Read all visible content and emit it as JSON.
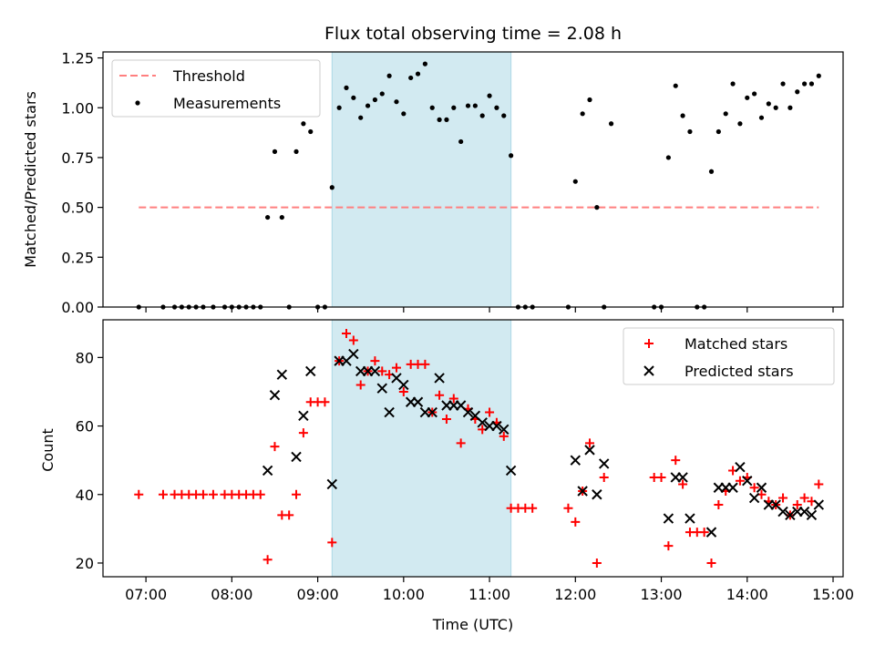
{
  "chart_data": [
    {
      "type": "scatter",
      "title": "Flux total observing time = 2.08 h",
      "xlabel": "",
      "ylabel": "Matched/Predicted stars",
      "xlim": [
        "06:30",
        "15:07"
      ],
      "ylim": [
        0,
        1.28
      ],
      "y_ticks": [
        "0.00",
        "0.25",
        "0.50",
        "0.75",
        "1.00",
        "1.25"
      ],
      "highlight_span": {
        "start": "09:10",
        "end": "11:15",
        "color": "#add8e6"
      },
      "legend_position": "upper-left",
      "series": [
        {
          "name": "Threshold",
          "kind": "dashed-line",
          "color": "#ff7f7f",
          "points": [
            [
              "06:55",
              0.5
            ],
            [
              "14:50",
              0.5
            ]
          ]
        },
        {
          "name": "Measurements",
          "kind": "dots",
          "color": "#000000",
          "points": [
            [
              "06:55",
              0
            ],
            [
              "07:12",
              0
            ],
            [
              "07:20",
              0
            ],
            [
              "07:25",
              0
            ],
            [
              "07:30",
              0
            ],
            [
              "07:35",
              0
            ],
            [
              "07:40",
              0
            ],
            [
              "07:47",
              0
            ],
            [
              "07:55",
              0
            ],
            [
              "08:00",
              0
            ],
            [
              "08:05",
              0
            ],
            [
              "08:10",
              0
            ],
            [
              "08:15",
              0
            ],
            [
              "08:20",
              0
            ],
            [
              "08:25",
              0.45
            ],
            [
              "08:30",
              0.78
            ],
            [
              "08:35",
              0.45
            ],
            [
              "08:40",
              0
            ],
            [
              "08:45",
              0.78
            ],
            [
              "08:50",
              0.92
            ],
            [
              "08:55",
              0.88
            ],
            [
              "09:00",
              0
            ],
            [
              "09:05",
              0
            ],
            [
              "09:10",
              0.6
            ],
            [
              "09:15",
              1.0
            ],
            [
              "09:20",
              1.1
            ],
            [
              "09:25",
              1.05
            ],
            [
              "09:30",
              0.95
            ],
            [
              "09:35",
              1.01
            ],
            [
              "09:40",
              1.04
            ],
            [
              "09:45",
              1.07
            ],
            [
              "09:50",
              1.16
            ],
            [
              "09:55",
              1.03
            ],
            [
              "10:00",
              0.97
            ],
            [
              "10:05",
              1.15
            ],
            [
              "10:10",
              1.17
            ],
            [
              "10:15",
              1.22
            ],
            [
              "10:20",
              1.0
            ],
            [
              "10:25",
              0.94
            ],
            [
              "10:30",
              0.94
            ],
            [
              "10:35",
              1.0
            ],
            [
              "10:40",
              0.83
            ],
            [
              "10:45",
              1.01
            ],
            [
              "10:50",
              1.01
            ],
            [
              "10:55",
              0.96
            ],
            [
              "11:00",
              1.06
            ],
            [
              "11:05",
              1.0
            ],
            [
              "11:10",
              0.96
            ],
            [
              "11:15",
              0.76
            ],
            [
              "11:20",
              0
            ],
            [
              "11:25",
              0
            ],
            [
              "11:30",
              0
            ],
            [
              "11:55",
              0
            ],
            [
              "12:00",
              0.63
            ],
            [
              "12:05",
              0.97
            ],
            [
              "12:10",
              1.04
            ],
            [
              "12:15",
              0.5
            ],
            [
              "12:20",
              0
            ],
            [
              "12:25",
              0.92
            ],
            [
              "12:55",
              0
            ],
            [
              "13:00",
              0
            ],
            [
              "13:05",
              0.75
            ],
            [
              "13:10",
              1.11
            ],
            [
              "13:15",
              0.96
            ],
            [
              "13:20",
              0.88
            ],
            [
              "13:25",
              0
            ],
            [
              "13:30",
              0
            ],
            [
              "13:35",
              0.68
            ],
            [
              "13:40",
              0.88
            ],
            [
              "13:45",
              0.97
            ],
            [
              "13:50",
              1.12
            ],
            [
              "13:55",
              0.92
            ],
            [
              "14:00",
              1.05
            ],
            [
              "14:05",
              1.07
            ],
            [
              "14:10",
              0.95
            ],
            [
              "14:15",
              1.02
            ],
            [
              "14:20",
              1.0
            ],
            [
              "14:25",
              1.12
            ],
            [
              "14:30",
              1.0
            ],
            [
              "14:35",
              1.08
            ],
            [
              "14:40",
              1.12
            ],
            [
              "14:45",
              1.12
            ],
            [
              "14:50",
              1.16
            ]
          ]
        }
      ]
    },
    {
      "type": "scatter",
      "xlabel": "Time (UTC)",
      "ylabel": "Count",
      "xlim": [
        "06:30",
        "15:07"
      ],
      "ylim": [
        16,
        91
      ],
      "x_ticks": [
        "07:00",
        "08:00",
        "09:00",
        "10:00",
        "11:00",
        "12:00",
        "13:00",
        "14:00",
        "15:00"
      ],
      "y_ticks": [
        "20",
        "40",
        "60",
        "80"
      ],
      "highlight_span": {
        "start": "09:10",
        "end": "11:15",
        "color": "#add8e6"
      },
      "legend_position": "upper-right",
      "series": [
        {
          "name": "Matched stars",
          "marker": "+",
          "color": "#ff0000",
          "points": [
            [
              "06:55",
              40
            ],
            [
              "07:12",
              40
            ],
            [
              "07:20",
              40
            ],
            [
              "07:25",
              40
            ],
            [
              "07:30",
              40
            ],
            [
              "07:35",
              40
            ],
            [
              "07:40",
              40
            ],
            [
              "07:47",
              40
            ],
            [
              "07:55",
              40
            ],
            [
              "08:00",
              40
            ],
            [
              "08:05",
              40
            ],
            [
              "08:10",
              40
            ],
            [
              "08:15",
              40
            ],
            [
              "08:20",
              40
            ],
            [
              "08:25",
              21
            ],
            [
              "08:30",
              54
            ],
            [
              "08:35",
              34
            ],
            [
              "08:40",
              34
            ],
            [
              "08:45",
              40
            ],
            [
              "08:50",
              58
            ],
            [
              "08:55",
              67
            ],
            [
              "09:00",
              67
            ],
            [
              "09:05",
              67
            ],
            [
              "09:10",
              26
            ],
            [
              "09:15",
              79
            ],
            [
              "09:20",
              87
            ],
            [
              "09:25",
              85
            ],
            [
              "09:30",
              72
            ],
            [
              "09:35",
              76
            ],
            [
              "09:40",
              79
            ],
            [
              "09:45",
              76
            ],
            [
              "09:50",
              75
            ],
            [
              "09:55",
              77
            ],
            [
              "10:00",
              70
            ],
            [
              "10:05",
              78
            ],
            [
              "10:10",
              78
            ],
            [
              "10:15",
              78
            ],
            [
              "10:20",
              64
            ],
            [
              "10:25",
              69
            ],
            [
              "10:30",
              62
            ],
            [
              "10:35",
              68
            ],
            [
              "10:40",
              55
            ],
            [
              "10:45",
              65
            ],
            [
              "10:50",
              62
            ],
            [
              "10:55",
              59
            ],
            [
              "11:00",
              64
            ],
            [
              "11:05",
              61
            ],
            [
              "11:10",
              57
            ],
            [
              "11:15",
              36
            ],
            [
              "11:20",
              36
            ],
            [
              "11:25",
              36
            ],
            [
              "11:30",
              36
            ],
            [
              "11:55",
              36
            ],
            [
              "12:00",
              32
            ],
            [
              "12:05",
              41
            ],
            [
              "12:10",
              55
            ],
            [
              "12:15",
              20
            ],
            [
              "12:20",
              45
            ],
            [
              "12:55",
              45
            ],
            [
              "13:00",
              45
            ],
            [
              "13:05",
              25
            ],
            [
              "13:10",
              50
            ],
            [
              "13:15",
              43
            ],
            [
              "13:20",
              29
            ],
            [
              "13:25",
              29
            ],
            [
              "13:30",
              29
            ],
            [
              "13:35",
              20
            ],
            [
              "13:40",
              37
            ],
            [
              "13:45",
              41
            ],
            [
              "13:50",
              47
            ],
            [
              "13:55",
              44
            ],
            [
              "14:00",
              45
            ],
            [
              "14:05",
              42
            ],
            [
              "14:10",
              40
            ],
            [
              "14:15",
              38
            ],
            [
              "14:20",
              37
            ],
            [
              "14:25",
              39
            ],
            [
              "14:30",
              34
            ],
            [
              "14:35",
              37
            ],
            [
              "14:40",
              39
            ],
            [
              "14:45",
              38
            ],
            [
              "14:50",
              43
            ]
          ]
        },
        {
          "name": "Predicted stars",
          "marker": "x",
          "color": "#000000",
          "points": [
            [
              "08:25",
              47
            ],
            [
              "08:30",
              69
            ],
            [
              "08:35",
              75
            ],
            [
              "08:45",
              51
            ],
            [
              "08:50",
              63
            ],
            [
              "08:55",
              76
            ],
            [
              "09:10",
              43
            ],
            [
              "09:15",
              79
            ],
            [
              "09:20",
              79
            ],
            [
              "09:25",
              81
            ],
            [
              "09:30",
              76
            ],
            [
              "09:35",
              76
            ],
            [
              "09:40",
              76
            ],
            [
              "09:45",
              71
            ],
            [
              "09:50",
              64
            ],
            [
              "09:55",
              74
            ],
            [
              "10:00",
              72
            ],
            [
              "10:05",
              67
            ],
            [
              "10:10",
              67
            ],
            [
              "10:15",
              64
            ],
            [
              "10:20",
              64
            ],
            [
              "10:25",
              74
            ],
            [
              "10:30",
              66
            ],
            [
              "10:35",
              66
            ],
            [
              "10:40",
              66
            ],
            [
              "10:45",
              64
            ],
            [
              "10:50",
              63
            ],
            [
              "10:55",
              61
            ],
            [
              "11:00",
              60
            ],
            [
              "11:05",
              60
            ],
            [
              "11:10",
              59
            ],
            [
              "11:15",
              47
            ],
            [
              "12:00",
              50
            ],
            [
              "12:05",
              41
            ],
            [
              "12:10",
              53
            ],
            [
              "12:15",
              40
            ],
            [
              "12:20",
              49
            ],
            [
              "13:05",
              33
            ],
            [
              "13:10",
              45
            ],
            [
              "13:15",
              45
            ],
            [
              "13:20",
              33
            ],
            [
              "13:35",
              29
            ],
            [
              "13:40",
              42
            ],
            [
              "13:45",
              42
            ],
            [
              "13:50",
              42
            ],
            [
              "13:55",
              48
            ],
            [
              "14:00",
              44
            ],
            [
              "14:05",
              39
            ],
            [
              "14:10",
              42
            ],
            [
              "14:15",
              37
            ],
            [
              "14:20",
              37
            ],
            [
              "14:25",
              35
            ],
            [
              "14:30",
              34
            ],
            [
              "14:35",
              35
            ],
            [
              "14:40",
              35
            ],
            [
              "14:45",
              34
            ],
            [
              "14:50",
              37
            ]
          ]
        }
      ]
    }
  ]
}
